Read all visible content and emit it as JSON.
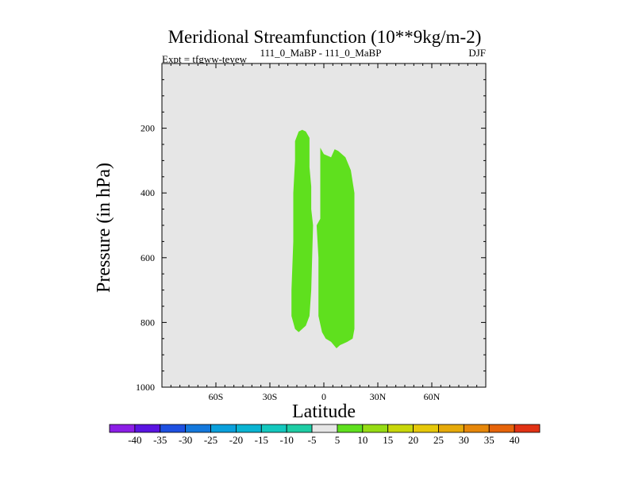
{
  "chart_data": {
    "type": "contour",
    "title": "Meridional Streamfunction (10**9kg/m-2)",
    "subtitle_left": "Expt = tfgww-teyew",
    "subtitle_center": "111_0_MaBP - 111_0_MaBP",
    "subtitle_right": "DJF",
    "xlabel": "Latitude",
    "ylabel": "Pressure (in hPa)",
    "xlim": [
      -90,
      90
    ],
    "ylim": [
      1000,
      0
    ],
    "x_ticks": [
      {
        "value": -60,
        "label": "60S"
      },
      {
        "value": -30,
        "label": "30S"
      },
      {
        "value": 0,
        "label": "0"
      },
      {
        "value": 30,
        "label": "30N"
      },
      {
        "value": 60,
        "label": "60N"
      }
    ],
    "y_ticks": [
      {
        "value": 200,
        "label": "200"
      },
      {
        "value": 400,
        "label": "400"
      },
      {
        "value": 600,
        "label": "600"
      },
      {
        "value": 800,
        "label": "800"
      },
      {
        "value": 1000,
        "label": "1000"
      }
    ],
    "background_color": "#e6e6e6",
    "filled_regions": [
      {
        "name": "Contour cell A",
        "level_range": [
          5,
          10
        ],
        "color": "#5fe01e",
        "points": [
          [
            -18,
            780
          ],
          [
            -16,
            820
          ],
          [
            -14,
            830
          ],
          [
            -10,
            810
          ],
          [
            -8,
            780
          ],
          [
            -7,
            700
          ],
          [
            -6,
            500
          ],
          [
            -7,
            450
          ],
          [
            -7,
            380
          ],
          [
            -8,
            320
          ],
          [
            -8,
            260
          ],
          [
            -8,
            230
          ],
          [
            -10,
            210
          ],
          [
            -12,
            205
          ],
          [
            -14,
            210
          ],
          [
            -16,
            240
          ],
          [
            -16,
            300
          ],
          [
            -17,
            400
          ],
          [
            -17,
            550
          ],
          [
            -18,
            700
          ]
        ]
      },
      {
        "name": "Contour cell B",
        "level_range": [
          5,
          10
        ],
        "color": "#5fe01e",
        "points": [
          [
            -2,
            260
          ],
          [
            -2,
            480
          ],
          [
            -4,
            500
          ],
          [
            -3,
            600
          ],
          [
            -3,
            780
          ],
          [
            -1,
            830
          ],
          [
            1,
            850
          ],
          [
            4,
            860
          ],
          [
            7,
            880
          ],
          [
            9,
            870
          ],
          [
            13,
            860
          ],
          [
            16,
            850
          ],
          [
            17,
            820
          ],
          [
            17,
            400
          ],
          [
            15,
            330
          ],
          [
            12,
            290
          ],
          [
            8,
            270
          ],
          [
            6,
            265
          ],
          [
            4,
            290
          ],
          [
            2,
            285
          ],
          [
            0,
            280
          ]
        ]
      }
    ],
    "colorbar": {
      "labels": [
        "-40",
        "-35",
        "-30",
        "-25",
        "-20",
        "-15",
        "-10",
        "-5",
        "5",
        "10",
        "15",
        "20",
        "25",
        "30",
        "35",
        "40"
      ],
      "colors": [
        "#8c1ee6",
        "#5a14e1",
        "#1e50e1",
        "#1478dc",
        "#0aa0dc",
        "#0ab4d2",
        "#14c8be",
        "#1ecda5",
        "#e6e6e6",
        "#5fe01e",
        "#96dc14",
        "#c8d70a",
        "#e6c80a",
        "#e6aa0a",
        "#e6870a",
        "#e6640a",
        "#e13214"
      ]
    }
  }
}
